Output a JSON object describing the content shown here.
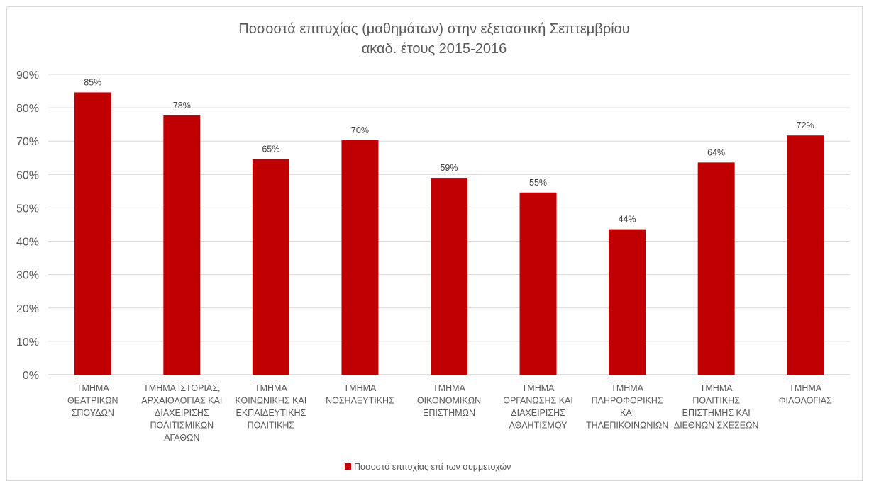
{
  "chart_data": {
    "type": "bar",
    "title": [
      "Ποσοστά επιτυχίας (μαθημάτων) στην εξεταστική Σεπτεμβρίου",
      "ακαδ. έτους 2015-2016"
    ],
    "categories": [
      [
        "ΤΜΗΜΑ",
        "ΘΕΑΤΡΙΚΩΝ",
        "ΣΠΟΥΔΩΝ"
      ],
      [
        "ΤΜΗΜΑ ΙΣΤΟΡΙΑΣ,",
        "ΑΡΧΑΙΟΛΟΓΙΑΣ ΚΑΙ",
        "ΔΙΑΧΕΙΡΙΣΗΣ",
        "ΠΟΛΙΤΙΣΜΙΚΩΝ",
        "ΑΓΑΘΩΝ"
      ],
      [
        "ΤΜΗΜΑ",
        "ΚΟΙΝΩΝΙΚΗΣ ΚΑΙ",
        "ΕΚΠΑΙΔΕΥΤΙΚΗΣ",
        "ΠΟΛΙΤΙΚΗΣ"
      ],
      [
        "ΤΜΗΜΑ",
        "ΝΟΣΗΛΕΥΤΙΚΗΣ"
      ],
      [
        "ΤΜΗΜΑ",
        "ΟΙΚΟΝΟΜΙΚΩΝ",
        "ΕΠΙΣΤΗΜΩΝ"
      ],
      [
        "ΤΜΗΜΑ",
        "ΟΡΓΑΝΩΣΗΣ ΚΑΙ",
        "ΔΙΑΧΕΙΡΙΣΗΣ",
        "ΑΘΛΗΤΙΣΜΟΥ"
      ],
      [
        "ΤΜΗΜΑ",
        "ΠΛΗΡΟΦΟΡΙΚΗΣ",
        "ΚΑΙ",
        "ΤΗΛΕΠΙΚΟΙΝΩΝΙΩΝ"
      ],
      [
        "ΤΜΗΜΑ",
        "ΠΟΛΙΤΙΚΗΣ",
        "ΕΠΙΣΤΗΜΗΣ ΚΑΙ",
        "ΔΙΕΘΝΩΝ ΣΧΕΣΕΩΝ"
      ],
      [
        "ΤΜΗΜΑ",
        "ΦΙΛΟΛΟΓΙΑΣ"
      ]
    ],
    "series": [
      {
        "name": "Ποσοστό επιτυχίας επί των συμμετοχών",
        "values": [
          84.6,
          77.7,
          64.6,
          70.3,
          59.0,
          54.6,
          43.6,
          63.6,
          71.7
        ],
        "labels": [
          "85%",
          "78%",
          "65%",
          "70%",
          "59%",
          "55%",
          "44%",
          "64%",
          "72%"
        ],
        "color": "#c00000"
      }
    ],
    "ylim": [
      0,
      90
    ],
    "yticks": [
      0,
      10,
      20,
      30,
      40,
      50,
      60,
      70,
      80,
      90
    ],
    "ytick_labels": [
      "0%",
      "10%",
      "20%",
      "30%",
      "40%",
      "50%",
      "60%",
      "70%",
      "80%",
      "90%"
    ],
    "grid": true,
    "legend": "bottom"
  }
}
